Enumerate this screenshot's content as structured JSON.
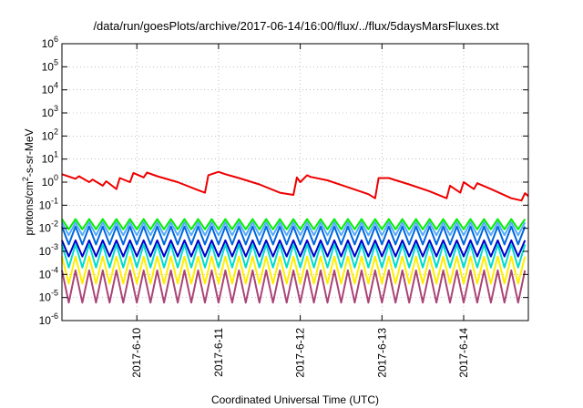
{
  "chart_data": {
    "type": "line",
    "title": "/data/run/goesPlots/archive/2017-06-14/16:00/flux/../flux/5daysMarsFluxes.txt",
    "xlabel": "Coordinated Universal Time (UTC)",
    "ylabel": "protons/cm²-s-sr-MeV",
    "ylabel_parts": {
      "pre": "protons/cm",
      "sup": "2",
      "post": "-s-sr-MeV"
    },
    "y_scale": "log",
    "ylim": [
      1e-06,
      1000000.0
    ],
    "xlim": [
      "2017-06-09 02:00",
      "2017-06-14 19:00"
    ],
    "grid": true,
    "x_ticks": [
      "2017-6-10",
      "2017-6-11",
      "2017-6-12",
      "2017-6-13",
      "2017-6-14"
    ],
    "y_ticks": [
      {
        "base": "10",
        "exp": "-6"
      },
      {
        "base": "10",
        "exp": "-5"
      },
      {
        "base": "10",
        "exp": "-4"
      },
      {
        "base": "10",
        "exp": "-3"
      },
      {
        "base": "10",
        "exp": "-2"
      },
      {
        "base": "10",
        "exp": "-1"
      },
      {
        "base": "10",
        "exp": "0"
      },
      {
        "base": "10",
        "exp": "1"
      },
      {
        "base": "10",
        "exp": "2"
      },
      {
        "base": "10",
        "exp": "3"
      },
      {
        "base": "10",
        "exp": "4"
      },
      {
        "base": "10",
        "exp": "5"
      },
      {
        "base": "10",
        "exp": "6"
      }
    ],
    "series": [
      {
        "color": "#ee0000",
        "x": [
          "2017-06-09 02:00",
          "2017-06-09 06:00",
          "2017-06-09 07:00",
          "2017-06-09 10:00",
          "2017-06-09 11:00",
          "2017-06-09 14:00",
          "2017-06-09 15:00",
          "2017-06-09 18:00",
          "2017-06-09 19:00",
          "2017-06-09 22:00",
          "2017-06-09 23:00",
          "2017-06-10 02:00",
          "2017-06-10 03:00",
          "2017-06-10 06:00",
          "2017-06-10 12:00",
          "2017-06-10 18:00",
          "2017-06-10 20:00",
          "2017-06-10 21:00",
          "2017-06-11 00:00",
          "2017-06-11 02:00",
          "2017-06-11 06:00",
          "2017-06-11 12:00",
          "2017-06-11 18:00",
          "2017-06-11 22:00",
          "2017-06-11 23:00",
          "2017-06-12 00:00",
          "2017-06-12 02:00",
          "2017-06-12 03:00",
          "2017-06-12 08:00",
          "2017-06-12 14:00",
          "2017-06-12 20:00",
          "2017-06-12 22:00",
          "2017-06-12 23:00",
          "2017-06-13 02:00",
          "2017-06-13 08:00",
          "2017-06-13 14:00",
          "2017-06-13 19:00",
          "2017-06-13 20:00",
          "2017-06-13 23:00",
          "2017-06-14 00:00",
          "2017-06-14 03:00",
          "2017-06-14 04:00",
          "2017-06-14 08:00",
          "2017-06-14 14:00",
          "2017-06-14 17:00",
          "2017-06-14 18:00",
          "2017-06-14 19:00"
        ],
        "y": [
          2.2,
          1.4,
          1.8,
          1.0,
          1.3,
          0.7,
          1.1,
          0.5,
          1.5,
          1.0,
          2.5,
          1.6,
          2.6,
          1.8,
          1.0,
          0.45,
          0.35,
          2.0,
          2.8,
          2.2,
          1.5,
          0.8,
          0.35,
          0.28,
          1.6,
          1.0,
          2.0,
          1.7,
          1.2,
          0.6,
          0.3,
          0.2,
          1.5,
          1.5,
          0.8,
          0.4,
          0.2,
          0.7,
          0.35,
          1.0,
          0.5,
          0.9,
          0.5,
          0.2,
          0.16,
          0.33,
          0.25
        ]
      }
    ],
    "cyclic_series": [
      {
        "color": "#00ee00",
        "hi": 0.025,
        "lo": 0.009
      },
      {
        "color": "#55aaff",
        "hi": 0.018,
        "lo": 0.005
      },
      {
        "color": "#0066dd",
        "hi": 0.012,
        "lo": 0.002
      },
      {
        "color": "#0000cc",
        "hi": 0.003,
        "lo": 0.0006
      },
      {
        "color": "#00ddcc",
        "hi": 0.002,
        "lo": 0.0002
      },
      {
        "color": "#ffee00",
        "hi": 0.0006,
        "lo": 4e-05
      },
      {
        "color": "#aa4477",
        "hi": 0.00015,
        "lo": 6e-06
      }
    ],
    "cycle_hours": 4
  }
}
